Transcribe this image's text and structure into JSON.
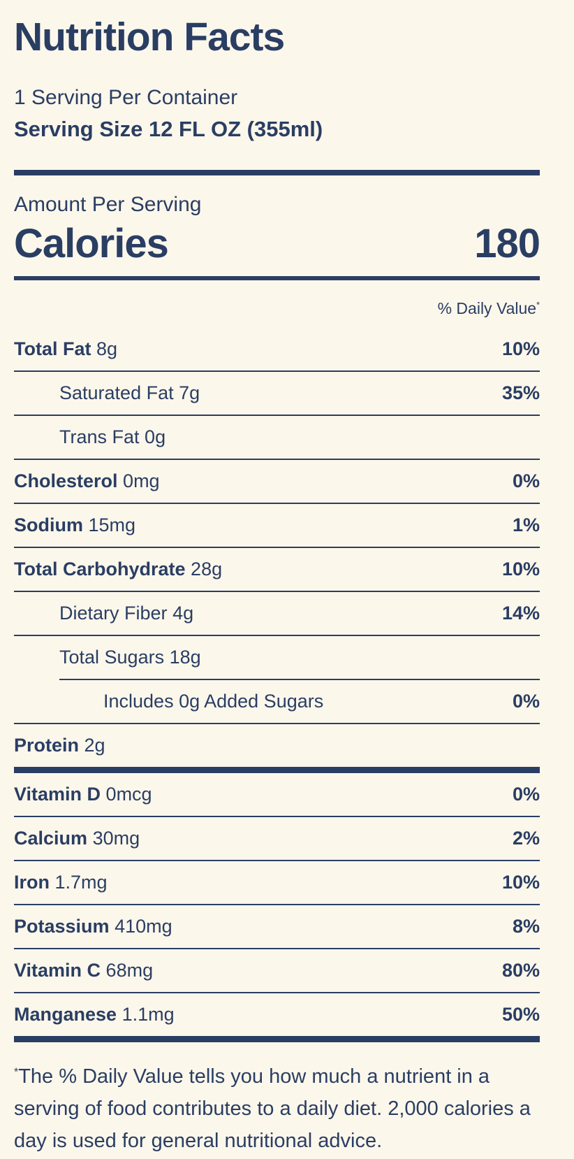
{
  "colors": {
    "background": "#FCF7EB",
    "ink": "#2A3E63"
  },
  "header": {
    "title": "Nutrition Facts",
    "servings_per_container": "1 Serving Per Container",
    "serving_size": "Serving Size 12 FL OZ (355ml)"
  },
  "calories_section": {
    "label": "Amount Per Serving",
    "calories_label": "Calories",
    "calories_value": "180"
  },
  "daily_value": {
    "header": "% Daily Value",
    "asterisk": "*"
  },
  "nutrients": [
    {
      "name": "Total Fat",
      "amount": "8g",
      "dv": "10%"
    },
    {
      "name": "Saturated Fat",
      "amount": "7g",
      "dv": "35%"
    },
    {
      "name": "Trans Fat",
      "amount": "0g",
      "dv": ""
    },
    {
      "name": "Cholesterol",
      "amount": "0mg",
      "dv": "0%"
    },
    {
      "name": "Sodium",
      "amount": "15mg",
      "dv": "1%"
    },
    {
      "name": "Total Carbohydrate",
      "amount": "28g",
      "dv": "10%"
    },
    {
      "name": "Dietary Fiber",
      "amount": "4g",
      "dv": "14%"
    },
    {
      "name": "Total Sugars",
      "amount": "18g",
      "dv": ""
    },
    {
      "name": "Includes 0g Added Sugars",
      "amount": "",
      "dv": "0%"
    },
    {
      "name": "Protein",
      "amount": "2g",
      "dv": ""
    }
  ],
  "vitamins": [
    {
      "name": "Vitamin D",
      "amount": "0mcg",
      "dv": "0%"
    },
    {
      "name": "Calcium",
      "amount": "30mg",
      "dv": "2%"
    },
    {
      "name": "Iron",
      "amount": "1.7mg",
      "dv": "10%"
    },
    {
      "name": "Potassium",
      "amount": "410mg",
      "dv": "8%"
    },
    {
      "name": "Vitamin C",
      "amount": "68mg",
      "dv": "80%"
    },
    {
      "name": "Manganese",
      "amount": "1.1mg",
      "dv": "50%"
    }
  ],
  "footnote": {
    "asterisk": "*",
    "text": "The % Daily Value tells you how much a nutrient in a serving of food contributes to a daily diet. 2,000 calories a day is used for general nutritional advice."
  }
}
